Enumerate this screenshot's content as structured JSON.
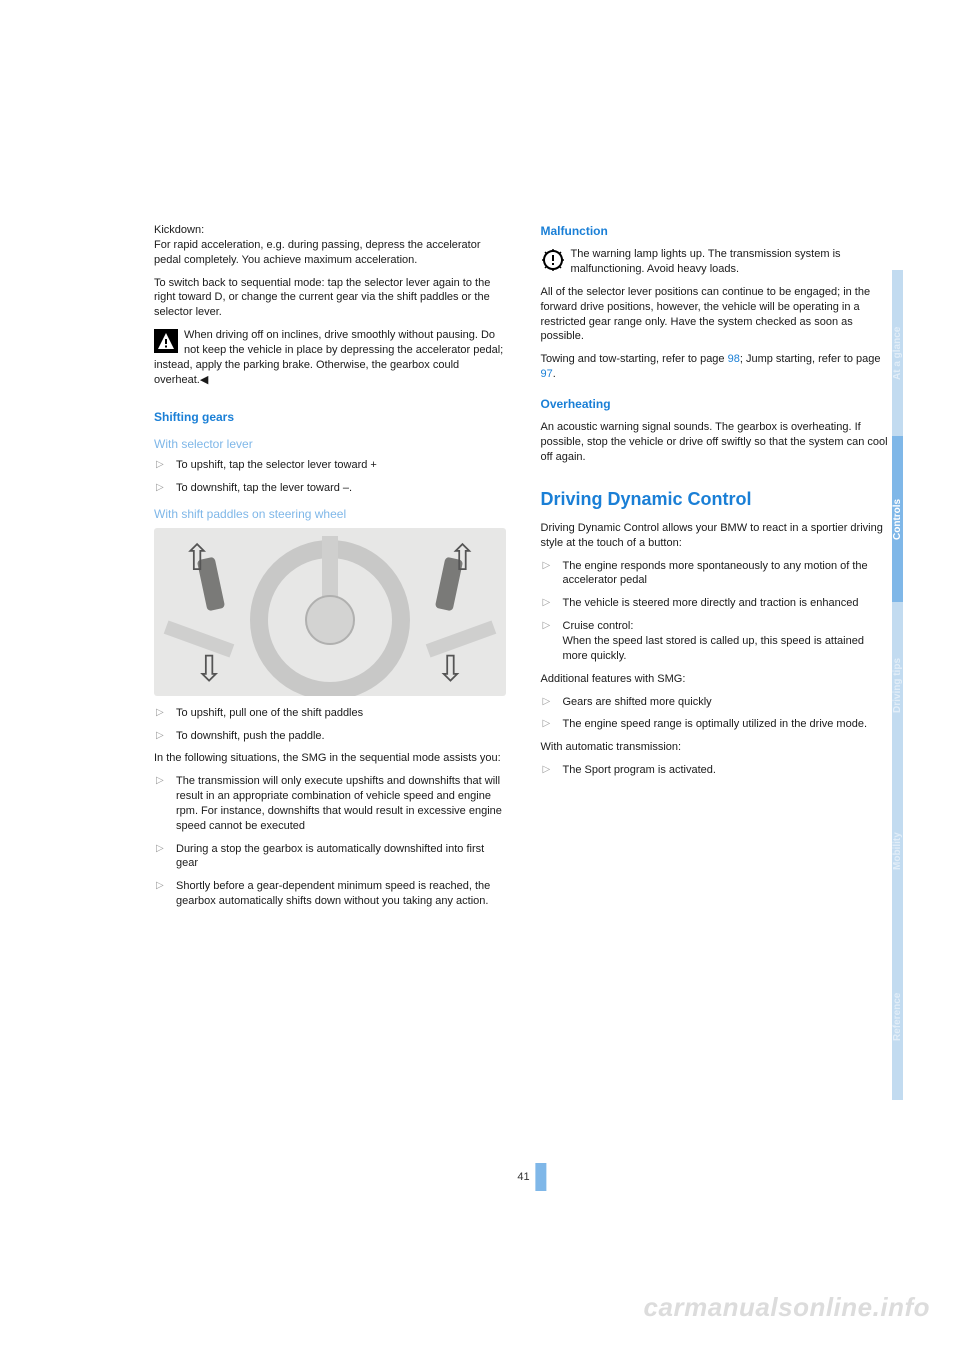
{
  "left": {
    "kickdown_label": "Kickdown:",
    "kickdown_body": "For rapid acceleration, e.g. during passing, depress the accelerator pedal completely. You achieve maximum acceleration.",
    "switch_back": "To switch back to sequential mode: tap the selector lever again to the right toward D, or change the current gear via the shift paddles or the selector lever.",
    "warning": "When driving off on inclines, drive smoothly without pausing. Do not keep the vehicle in place by depressing the accelerator pedal; instead, apply the parking brake. Otherwise, the gearbox could overheat.◀",
    "shifting_heading": "Shifting gears",
    "selector_heading": "With selector lever",
    "selector_items": [
      "To upshift, tap the selector lever toward +",
      "To downshift, tap the lever toward –."
    ],
    "paddles_heading": "With shift paddles on steering wheel",
    "paddles_items": [
      "To upshift, pull one of the shift paddles",
      "To downshift, push the paddle."
    ],
    "following_intro": "In the following situations, the SMG in the sequential mode assists you:",
    "following_items": [
      "The transmission will only execute upshifts and downshifts that will result in an appropriate combination of vehicle speed and engine rpm. For instance, downshifts that would result in excessive engine speed cannot be executed",
      "During a stop the gearbox is automatically downshifted into first gear",
      "Shortly before a gear-dependent minimum speed is reached, the gearbox automatically shifts down without you taking any action."
    ]
  },
  "right": {
    "malfunction_heading": "Malfunction",
    "malfunction_warn": "The warning lamp lights up. The transmission system is malfunctioning. Avoid heavy loads.",
    "malfunction_body": "All of the selector lever positions can continue to be engaged; in the forward drive positions, however, the vehicle will be operating in a restricted gear range only. Have the system checked as soon as possible.",
    "towing_pre": "Towing and tow-starting, refer to page ",
    "towing_link": "98",
    "towing_sep": "; Jump starting, refer to page ",
    "jump_link": "97",
    "towing_post": ".",
    "overheating_heading": "Overheating",
    "overheating_body": "An acoustic warning signal sounds. The gearbox is overheating. If possible, stop the vehicle or drive off swiftly so that the system can cool off again.",
    "ddc_heading": "Driving Dynamic Control",
    "ddc_intro": "Driving Dynamic Control allows your BMW to react in a sportier driving style at the touch of a button:",
    "ddc_items": [
      "The engine responds more spontaneously to any motion of the accelerator pedal",
      "The vehicle is steered more directly and traction is enhanced",
      "Cruise control:\nWhen the speed last stored is called up, this speed is attained more quickly."
    ],
    "smg_intro": "Additional features with SMG:",
    "smg_items": [
      "Gears are shifted more quickly",
      "The engine speed range is optimally utilized in the drive mode."
    ],
    "auto_intro": "With automatic transmission:",
    "auto_items": [
      "The Sport program is activated."
    ]
  },
  "tabs": [
    {
      "label": "At a glance",
      "color": "#c2dbf0",
      "active": false
    },
    {
      "label": "Controls",
      "color": "#7fb7e8",
      "active": true
    },
    {
      "label": "Driving tips",
      "color": "#c2dbf0",
      "active": false
    },
    {
      "label": "Mobility",
      "color": "#c2dbf0",
      "active": false
    },
    {
      "label": "Reference",
      "color": "#c2dbf0",
      "active": false
    }
  ],
  "page_number": "41",
  "watermark": "carmanualsonline.info"
}
